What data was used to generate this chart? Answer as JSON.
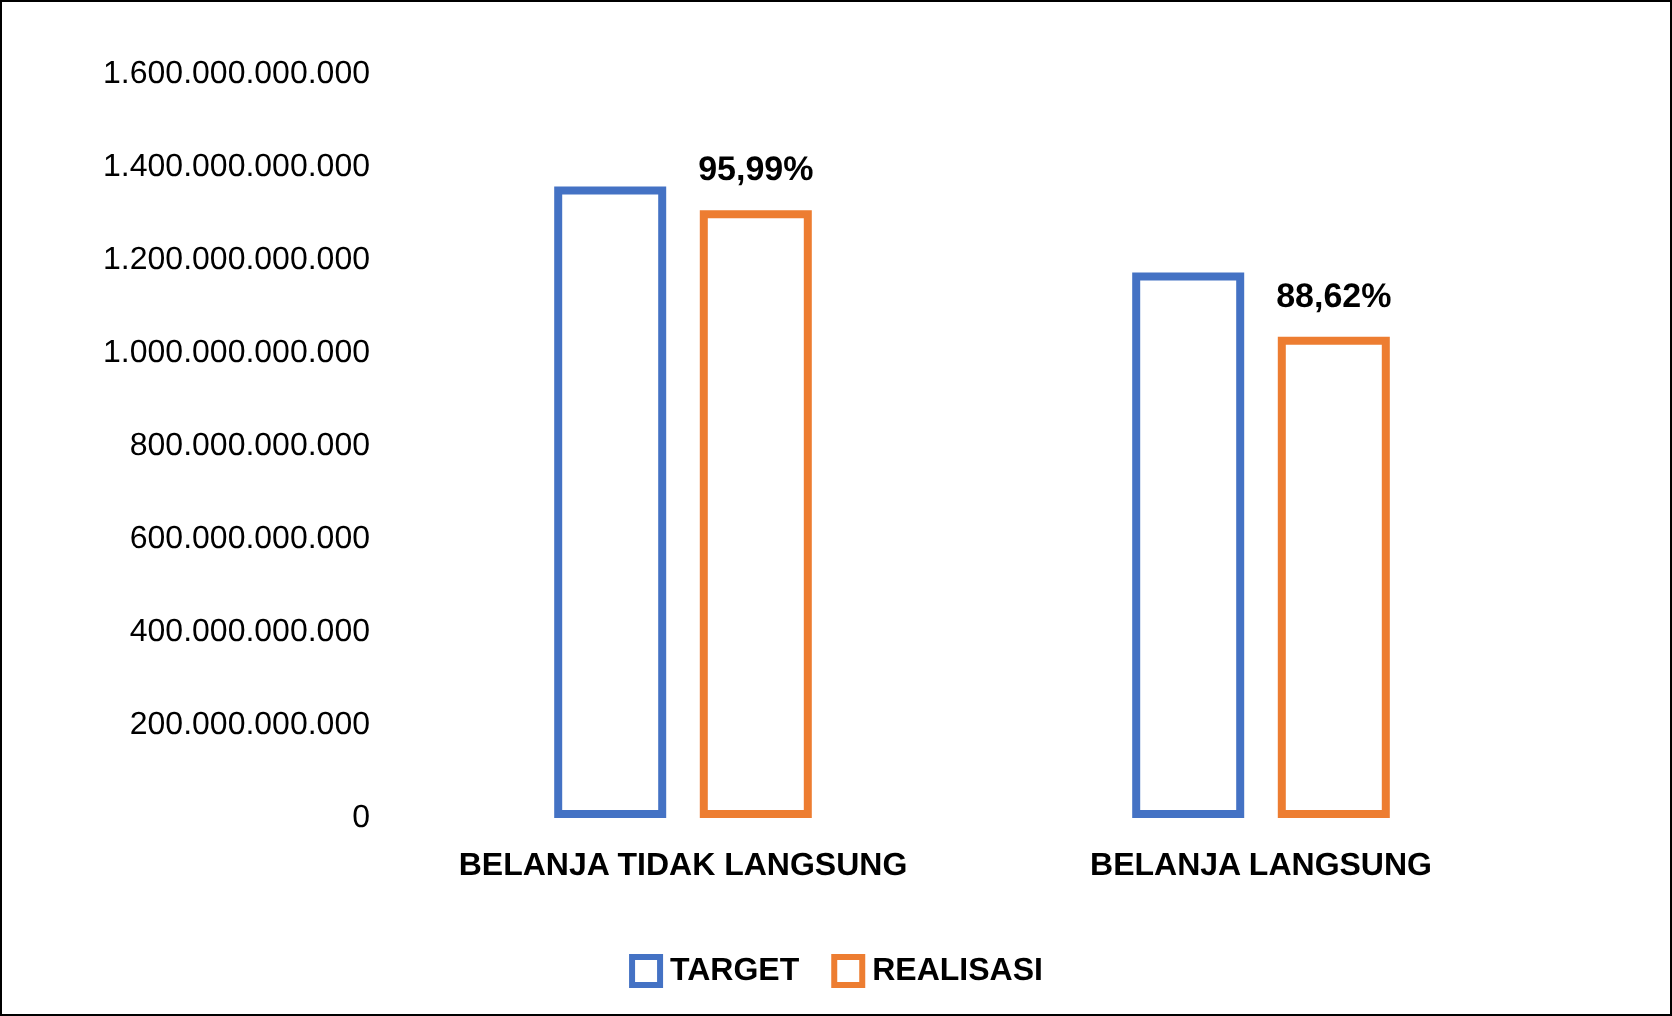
{
  "chart_data": {
    "type": "bar",
    "categories": [
      "BELANJA TIDAK LANGSUNG",
      "BELANJA LANGSUNG"
    ],
    "series": [
      {
        "name": "TARGET",
        "color": "#4472c4",
        "values": [
          1358000000000,
          1173000000000
        ]
      },
      {
        "name": "REALISASI",
        "color": "#ed7d31",
        "values": [
          1307000000000,
          1035000000000
        ]
      }
    ],
    "annotations": [
      "95,99%",
      "88,62%"
    ],
    "ylim": [
      0,
      1600000000000
    ],
    "yticks": [
      0,
      {
        "value": 200000000000,
        "label": "200.000.000.000"
      },
      {
        "value": 400000000000,
        "label": "400.000.000.000"
      },
      {
        "value": 600000000000,
        "label": "600.000.000.000"
      },
      {
        "value": 800000000000,
        "label": "800.000.000.000"
      },
      {
        "value": 1000000000000,
        "label": "1.000.000.000.000"
      },
      {
        "value": 1200000000000,
        "label": "1.200.000.000.000"
      },
      {
        "value": 1400000000000,
        "label": "1.400.000.000.000"
      },
      {
        "value": 1600000000000,
        "label": "1.600.000.000.000"
      }
    ],
    "grid": false,
    "legend": "bottom"
  }
}
